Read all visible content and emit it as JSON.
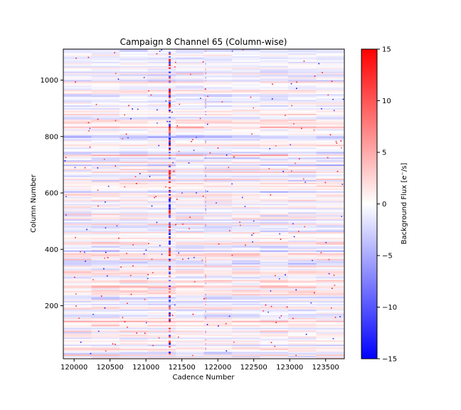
{
  "chart_data": {
    "type": "heatmap",
    "title": "Campaign 8 Channel 65 (Column-wise)",
    "xlabel": "Cadence Number",
    "ylabel": "Column Number",
    "xlim": [
      119850,
      123760
    ],
    "ylim": [
      12,
      1110
    ],
    "x_ticks": [
      120000,
      120500,
      121000,
      121500,
      122000,
      122500,
      123000,
      123500
    ],
    "y_ticks": [
      200,
      400,
      600,
      800,
      1000
    ],
    "colorbar": {
      "label": "Background Flux [e$^-$/s]",
      "label_display": "Background Flux [e⁻/s]",
      "range": [
        -15,
        15
      ],
      "ticks": [
        -15,
        -10,
        -5,
        0,
        5,
        10,
        15
      ],
      "colormap": "bwr",
      "colors": {
        "low": "#0000ff",
        "mid": "#ffffff",
        "high": "#ff0000"
      }
    },
    "grid": false,
    "notes_visible_features": {
      "strong_vertical_stripe_cadence": 121330,
      "faint_vertical_stripe_cadence": 121830
    }
  }
}
